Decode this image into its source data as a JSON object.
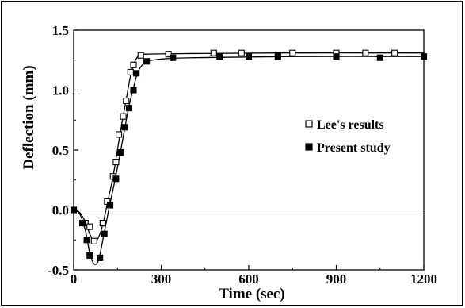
{
  "chart_data": {
    "type": "line",
    "title": "",
    "xlabel": "Time (sec)",
    "ylabel": "Deflection (mm)",
    "xlim": [
      0,
      1200
    ],
    "ylim": [
      -0.5,
      1.5
    ],
    "xticks": [
      "0",
      "300",
      "600",
      "900",
      "1200"
    ],
    "yticks": [
      "-0.5",
      "0.0",
      "0.5",
      "1.0",
      "1.5"
    ],
    "grid": false,
    "zero_line": true,
    "legend_position": "right-middle",
    "series": [
      {
        "name": "Lee's results",
        "marker": "open-square",
        "color": "#000000",
        "markers": [
          {
            "x": 0,
            "y": 0.0
          },
          {
            "x": 40,
            "y": -0.11
          },
          {
            "x": 55,
            "y": -0.14
          },
          {
            "x": 70,
            "y": -0.26
          },
          {
            "x": 100,
            "y": -0.11
          },
          {
            "x": 115,
            "y": 0.07
          },
          {
            "x": 135,
            "y": 0.28
          },
          {
            "x": 145,
            "y": 0.4
          },
          {
            "x": 155,
            "y": 0.63
          },
          {
            "x": 170,
            "y": 0.78
          },
          {
            "x": 180,
            "y": 0.91
          },
          {
            "x": 195,
            "y": 1.15
          },
          {
            "x": 205,
            "y": 1.21
          },
          {
            "x": 230,
            "y": 1.29
          },
          {
            "x": 325,
            "y": 1.3
          },
          {
            "x": 480,
            "y": 1.31
          },
          {
            "x": 575,
            "y": 1.31
          },
          {
            "x": 750,
            "y": 1.31
          },
          {
            "x": 900,
            "y": 1.31
          },
          {
            "x": 1000,
            "y": 1.31
          },
          {
            "x": 1100,
            "y": 1.31
          }
        ],
        "curve": [
          {
            "x": 0,
            "y": 0.0
          },
          {
            "x": 20,
            "y": -0.02
          },
          {
            "x": 40,
            "y": -0.1
          },
          {
            "x": 55,
            "y": -0.2
          },
          {
            "x": 70,
            "y": -0.26
          },
          {
            "x": 85,
            "y": -0.23
          },
          {
            "x": 100,
            "y": -0.12
          },
          {
            "x": 115,
            "y": 0.05
          },
          {
            "x": 135,
            "y": 0.28
          },
          {
            "x": 150,
            "y": 0.5
          },
          {
            "x": 165,
            "y": 0.72
          },
          {
            "x": 180,
            "y": 0.92
          },
          {
            "x": 195,
            "y": 1.12
          },
          {
            "x": 210,
            "y": 1.24
          },
          {
            "x": 225,
            "y": 1.29
          },
          {
            "x": 250,
            "y": 1.3
          },
          {
            "x": 400,
            "y": 1.305
          },
          {
            "x": 700,
            "y": 1.31
          },
          {
            "x": 1200,
            "y": 1.31
          }
        ]
      },
      {
        "name": "Present study",
        "marker": "filled-square",
        "color": "#000000",
        "markers": [
          {
            "x": 0,
            "y": 0.0
          },
          {
            "x": 30,
            "y": -0.11
          },
          {
            "x": 45,
            "y": -0.25
          },
          {
            "x": 55,
            "y": -0.38
          },
          {
            "x": 90,
            "y": -0.4
          },
          {
            "x": 105,
            "y": -0.2
          },
          {
            "x": 125,
            "y": 0.04
          },
          {
            "x": 145,
            "y": 0.26
          },
          {
            "x": 160,
            "y": 0.48
          },
          {
            "x": 175,
            "y": 0.69
          },
          {
            "x": 190,
            "y": 0.85
          },
          {
            "x": 205,
            "y": 1.0
          },
          {
            "x": 215,
            "y": 1.14
          },
          {
            "x": 250,
            "y": 1.24
          },
          {
            "x": 340,
            "y": 1.27
          },
          {
            "x": 500,
            "y": 1.28
          },
          {
            "x": 600,
            "y": 1.28
          },
          {
            "x": 700,
            "y": 1.28
          },
          {
            "x": 900,
            "y": 1.28
          },
          {
            "x": 1050,
            "y": 1.27
          },
          {
            "x": 1200,
            "y": 1.28
          }
        ],
        "curve": [
          {
            "x": 0,
            "y": 0.0
          },
          {
            "x": 20,
            "y": -0.03
          },
          {
            "x": 40,
            "y": -0.17
          },
          {
            "x": 55,
            "y": -0.36
          },
          {
            "x": 70,
            "y": -0.45
          },
          {
            "x": 85,
            "y": -0.42
          },
          {
            "x": 100,
            "y": -0.25
          },
          {
            "x": 120,
            "y": 0.0
          },
          {
            "x": 140,
            "y": 0.23
          },
          {
            "x": 160,
            "y": 0.48
          },
          {
            "x": 175,
            "y": 0.68
          },
          {
            "x": 190,
            "y": 0.87
          },
          {
            "x": 205,
            "y": 1.02
          },
          {
            "x": 220,
            "y": 1.15
          },
          {
            "x": 240,
            "y": 1.22
          },
          {
            "x": 270,
            "y": 1.25
          },
          {
            "x": 400,
            "y": 1.27
          },
          {
            "x": 800,
            "y": 1.28
          },
          {
            "x": 1200,
            "y": 1.28
          }
        ]
      }
    ]
  }
}
